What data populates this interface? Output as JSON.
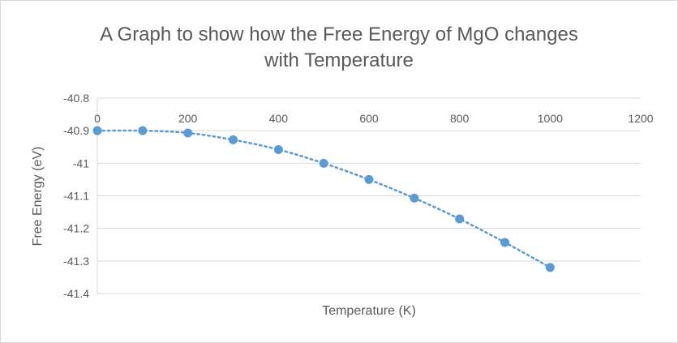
{
  "chart_data": {
    "type": "scatter",
    "title_line1": "A Graph to show how the Free Energy of MgO changes",
    "title_line2": "with Temperature",
    "xlabel": "Temperature (K)",
    "ylabel": "Free Energy (eV)",
    "xlim": [
      0,
      1200
    ],
    "ylim": [
      -41.4,
      -40.8
    ],
    "xticks": [
      "0",
      "200",
      "400",
      "600",
      "800",
      "1000",
      "1200"
    ],
    "yticks": [
      "-40.8",
      "-40.9",
      "-41",
      "-41.1",
      "-41.2",
      "-41.3",
      "-41.4"
    ],
    "grid": true,
    "legend": "none",
    "trendline": "dotted polynomial",
    "color": "#5b9bd5",
    "x": [
      0,
      100,
      200,
      300,
      400,
      500,
      600,
      700,
      800,
      900,
      1000
    ],
    "y": [
      -40.9,
      -40.9,
      -40.907,
      -40.928,
      -40.958,
      -41.0,
      -41.05,
      -41.107,
      -41.171,
      -41.243,
      -41.32
    ]
  }
}
